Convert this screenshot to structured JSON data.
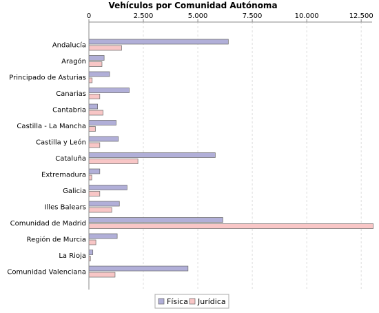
{
  "chart_data": {
    "type": "bar",
    "orientation": "horizontal",
    "title": "Vehículos por Comunidad Autónoma",
    "xlabel": "",
    "ylabel": "",
    "xlim": [
      0,
      13000
    ],
    "ticks": [
      0,
      2500,
      5000,
      7500,
      10000,
      12500
    ],
    "tick_labels": [
      "0",
      "2.500",
      "5.000",
      "7.500",
      "10.000",
      "12.500"
    ],
    "grid": true,
    "legend_position": "bottom",
    "categories": [
      "Andalucía",
      "Aragón",
      "Principado de Asturias",
      "Canarias",
      "Cantabria",
      "Castilla - La Mancha",
      "Castilla y León",
      "Cataluña",
      "Extremadura",
      "Galicia",
      "Illes Balears",
      "Comunidad de Madrid",
      "Región de Murcia",
      "La Rioja",
      "Comunidad Valenciana"
    ],
    "series": [
      {
        "name": "Física",
        "color": "#b1afd8",
        "values": [
          6400,
          700,
          950,
          1850,
          400,
          1250,
          1350,
          5800,
          500,
          1750,
          1400,
          6150,
          1300,
          180,
          4550
        ]
      },
      {
        "name": "Jurídica",
        "color": "#f8c6c6",
        "values": [
          1500,
          600,
          150,
          500,
          650,
          300,
          500,
          2250,
          130,
          500,
          1050,
          13050,
          320,
          70,
          1200
        ]
      }
    ]
  }
}
